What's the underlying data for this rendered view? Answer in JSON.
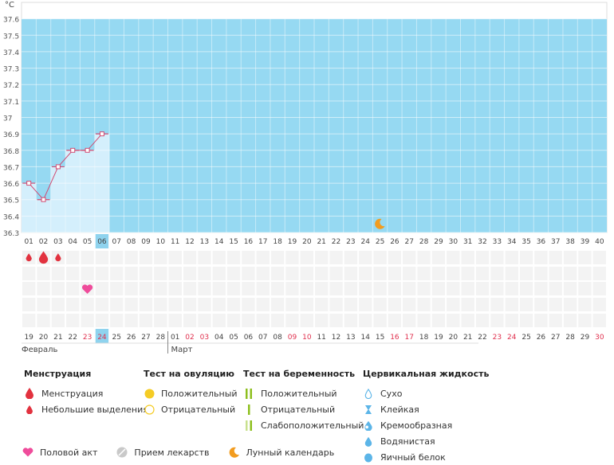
{
  "chart_data": {
    "type": "line",
    "y_unit": "°C",
    "ylim": [
      36.3,
      37.7
    ],
    "y_ticks": [
      "37.6",
      "37.5",
      "37.4",
      "37.3",
      "37.2",
      "37.1",
      "37",
      "36.9",
      "36.8",
      "36.7",
      "36.6",
      "36.5",
      "36.4",
      "36.3"
    ],
    "coverline": 37.6,
    "cycle_days": [
      "01",
      "02",
      "03",
      "04",
      "05",
      "06",
      "07",
      "08",
      "09",
      "10",
      "11",
      "12",
      "13",
      "14",
      "15",
      "16",
      "17",
      "18",
      "19",
      "20",
      "21",
      "22",
      "23",
      "24",
      "25",
      "26",
      "27",
      "28",
      "29",
      "30",
      "31",
      "32",
      "33",
      "34",
      "35",
      "36",
      "37",
      "38",
      "39",
      "40"
    ],
    "current_day_index": 5,
    "series": [
      {
        "values": [
          36.6,
          36.5,
          36.7,
          36.8,
          36.8,
          36.9
        ]
      }
    ],
    "calendar_dates": [
      "19",
      "20",
      "21",
      "22",
      "23",
      "24",
      "25",
      "26",
      "27",
      "28",
      "01",
      "02",
      "03",
      "04",
      "05",
      "06",
      "07",
      "08",
      "09",
      "10",
      "11",
      "12",
      "13",
      "14",
      "15",
      "16",
      "17",
      "18",
      "19",
      "20",
      "21",
      "22",
      "23",
      "24",
      "25",
      "26",
      "27",
      "28",
      "29",
      "30"
    ],
    "weekend_indexes": [
      4,
      5,
      11,
      12,
      18,
      19,
      25,
      26,
      32,
      33,
      39
    ],
    "months": [
      {
        "label": "Февраль",
        "start_index": 0
      },
      {
        "label": "Март",
        "start_index": 10
      }
    ],
    "menstruation_marks": [
      {
        "index": 0,
        "size": "small"
      },
      {
        "index": 1,
        "size": "large"
      },
      {
        "index": 2,
        "size": "small"
      }
    ],
    "intercourse_marks": [
      4
    ],
    "moon_marks": [
      24
    ]
  },
  "legend": {
    "menstruation": {
      "title": "Менструация",
      "items": [
        "Менструация",
        "Небольшие выделения"
      ]
    },
    "ovulation_test": {
      "title": "Тест на овуляцию",
      "items": [
        "Положительный",
        "Отрицательный"
      ]
    },
    "pregnancy_test": {
      "title": "Тест на беременность",
      "items": [
        "Положительный",
        "Отрицательный",
        "Слабоположительный"
      ]
    },
    "cervical_fluid": {
      "title": "Цервикальная жидкость",
      "items": [
        "Сухо",
        "Клейкая",
        "Кремообразная",
        "Водянистая",
        "Яичный белок"
      ]
    },
    "bottom": [
      "Половой акт",
      "Прием лекарств",
      "Лунный календарь"
    ]
  },
  "colors": {
    "chart_bg": "#96d9f2",
    "highlight_col": "#d4effc",
    "line": "#d14b72",
    "current_day_bg": "#8fd3ee",
    "weekend_text": "#e0304e",
    "menstruation": "#e2323f",
    "heart": "#ef4c9b",
    "moon": "#f29c1f",
    "pos_yellow": "#f5cc25",
    "green": "#8dbf1e",
    "drop_blue": "#5cb5e8"
  }
}
